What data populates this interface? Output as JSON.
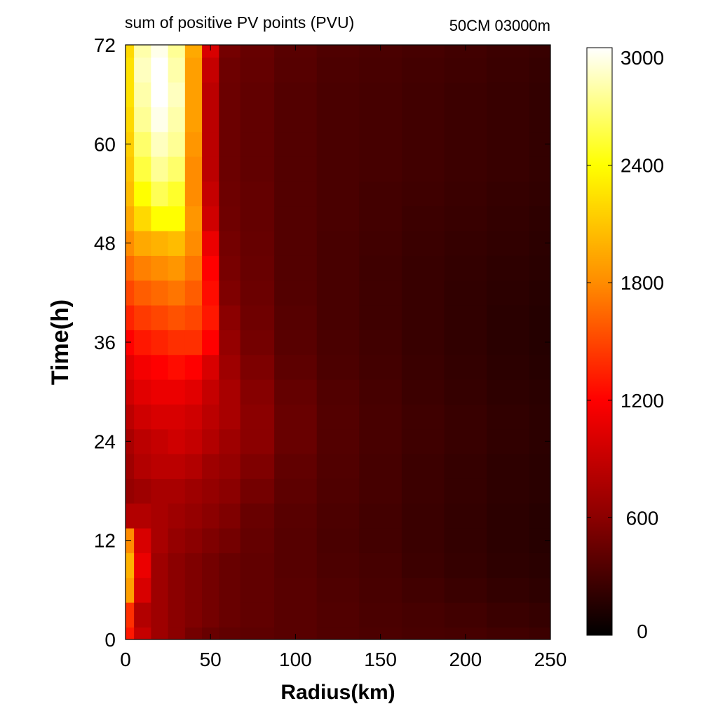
{
  "chart_data": {
    "type": "heatmap",
    "title": "sum of positive PV points (PVU)",
    "subtitle": "50CM 03000m",
    "xlabel": "Radius(km)",
    "ylabel": "Time(h)",
    "xlim": [
      0,
      250
    ],
    "ylim": [
      0,
      72
    ],
    "x_ticks": [
      "0",
      "50",
      "100",
      "150",
      "200",
      "250"
    ],
    "y_ticks": [
      "0",
      "12",
      "24",
      "36",
      "48",
      "60",
      "72"
    ],
    "colorbar": {
      "min": 0,
      "max": 3000,
      "ticks": [
        "0",
        "600",
        "1200",
        "1800",
        "2400",
        "3000"
      ],
      "colormap": "hot",
      "colors": [
        "#000000",
        "#8b0000",
        "#ff0000",
        "#ff8c00",
        "#ffff00",
        "#ffffff"
      ]
    },
    "grid": false,
    "radius_km": [
      0,
      10,
      20,
      30,
      40,
      50,
      60,
      75,
      100,
      125,
      150,
      175,
      200,
      225,
      250
    ],
    "time_h": [
      0,
      3,
      6,
      9,
      12,
      15,
      18,
      21,
      24,
      27,
      30,
      33,
      36,
      39,
      42,
      45,
      48,
      51,
      54,
      57,
      60,
      63,
      66,
      69,
      72
    ],
    "values": [
      [
        1300,
        900,
        700,
        600,
        500,
        450,
        420,
        400,
        380,
        350,
        330,
        310,
        300,
        280,
        260
      ],
      [
        1400,
        800,
        700,
        600,
        550,
        500,
        450,
        420,
        380,
        350,
        320,
        300,
        280,
        250,
        230
      ],
      [
        1900,
        1000,
        700,
        600,
        550,
        500,
        450,
        420,
        380,
        340,
        310,
        280,
        250,
        220,
        200
      ],
      [
        2000,
        1100,
        700,
        600,
        550,
        500,
        450,
        420,
        370,
        330,
        300,
        260,
        230,
        200,
        180
      ],
      [
        1800,
        1000,
        750,
        650,
        600,
        550,
        500,
        430,
        370,
        320,
        290,
        250,
        220,
        190,
        170
      ],
      [
        800,
        800,
        750,
        700,
        650,
        600,
        550,
        450,
        380,
        330,
        290,
        250,
        220,
        190,
        170
      ],
      [
        650,
        700,
        750,
        750,
        700,
        650,
        600,
        500,
        400,
        340,
        300,
        260,
        230,
        200,
        180
      ],
      [
        700,
        800,
        850,
        850,
        800,
        700,
        650,
        550,
        420,
        350,
        300,
        260,
        230,
        200,
        180
      ],
      [
        750,
        850,
        900,
        950,
        900,
        800,
        700,
        600,
        450,
        360,
        310,
        270,
        240,
        210,
        190
      ],
      [
        850,
        950,
        1000,
        1000,
        950,
        850,
        750,
        600,
        450,
        360,
        310,
        270,
        240,
        210,
        190
      ],
      [
        950,
        1050,
        1100,
        1100,
        1050,
        900,
        750,
        580,
        430,
        350,
        300,
        260,
        230,
        200,
        180
      ],
      [
        1050,
        1150,
        1200,
        1250,
        1200,
        1000,
        700,
        540,
        400,
        330,
        290,
        250,
        220,
        190,
        170
      ],
      [
        1200,
        1300,
        1350,
        1400,
        1400,
        1200,
        650,
        500,
        380,
        320,
        280,
        240,
        210,
        180,
        160
      ],
      [
        1350,
        1450,
        1500,
        1550,
        1500,
        1300,
        600,
        480,
        370,
        310,
        270,
        240,
        210,
        180,
        160
      ],
      [
        1500,
        1600,
        1650,
        1700,
        1600,
        1250,
        550,
        460,
        360,
        310,
        270,
        240,
        210,
        190,
        170
      ],
      [
        1650,
        1750,
        1800,
        1850,
        1700,
        1200,
        520,
        450,
        360,
        310,
        270,
        240,
        220,
        200,
        180
      ],
      [
        1800,
        1950,
        2000,
        2050,
        1800,
        1100,
        500,
        440,
        360,
        310,
        280,
        250,
        230,
        210,
        190
      ],
      [
        1950,
        2200,
        2400,
        2400,
        1850,
        950,
        480,
        430,
        360,
        320,
        290,
        260,
        240,
        220,
        200
      ],
      [
        2050,
        2400,
        2600,
        2500,
        1800,
        900,
        470,
        430,
        360,
        320,
        290,
        270,
        250,
        230,
        210
      ],
      [
        2100,
        2550,
        2750,
        2650,
        1800,
        850,
        460,
        420,
        360,
        320,
        300,
        280,
        260,
        240,
        220
      ],
      [
        2150,
        2650,
        2850,
        2750,
        1850,
        850,
        460,
        420,
        360,
        320,
        300,
        280,
        260,
        240,
        220
      ],
      [
        2200,
        2750,
        2950,
        2800,
        1900,
        850,
        460,
        420,
        360,
        320,
        300,
        280,
        260,
        240,
        220
      ],
      [
        2250,
        2800,
        3000,
        2850,
        1900,
        850,
        460,
        420,
        360,
        320,
        300,
        280,
        260,
        240,
        220
      ],
      [
        2250,
        2850,
        3000,
        2800,
        1900,
        900,
        470,
        430,
        370,
        330,
        310,
        290,
        270,
        250,
        230
      ],
      [
        2200,
        2800,
        2950,
        2750,
        1950,
        1000,
        500,
        440,
        380,
        340,
        320,
        300,
        280,
        260,
        240
      ]
    ]
  }
}
